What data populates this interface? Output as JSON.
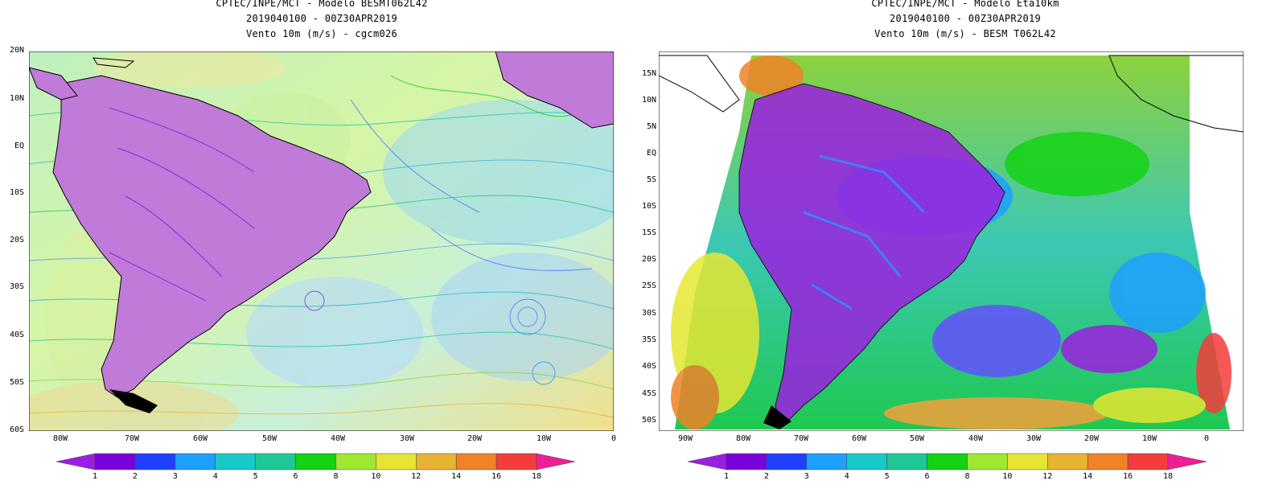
{
  "left": {
    "title_lines": [
      "CPTEC/INPE/MCT  -  Modelo BESMT062L42",
      "2019040100 - 00Z30APR2019",
      "Vento 10m (m/s) - cgcm026"
    ],
    "lat_labels": [
      "20N",
      "10N",
      "EQ",
      "10S",
      "20S",
      "30S",
      "40S",
      "50S",
      "60S"
    ],
    "lon_labels": [
      "80W",
      "70W",
      "60W",
      "50W",
      "40W",
      "30W",
      "20W",
      "10W",
      "0"
    ]
  },
  "right": {
    "title_lines": [
      "CPTEC/INPE/MCT  -  Modelo Eta10km",
      "2019040100 - 00Z30APR2019",
      "Vento 10m (m/s) - BESM T062L42"
    ],
    "lat_labels": [
      "15N",
      "10N",
      "5N",
      "EQ",
      "5S",
      "10S",
      "15S",
      "20S",
      "25S",
      "30S",
      "35S",
      "40S",
      "45S",
      "50S"
    ],
    "lon_labels": [
      "90W",
      "80W",
      "70W",
      "60W",
      "50W",
      "40W",
      "30W",
      "20W",
      "10W",
      "0"
    ]
  },
  "colorbar": {
    "labels": [
      "1",
      "2",
      "3",
      "4",
      "5",
      "6",
      "8",
      "10",
      "12",
      "14",
      "16",
      "18"
    ],
    "colors": [
      "#9b1fe0",
      "#7a00dc",
      "#2040ff",
      "#1ea0ff",
      "#19c8c8",
      "#1ec896",
      "#14d214",
      "#a0e632",
      "#e6e632",
      "#e6b432",
      "#f08228",
      "#f53c3c",
      "#f01e96"
    ]
  }
}
